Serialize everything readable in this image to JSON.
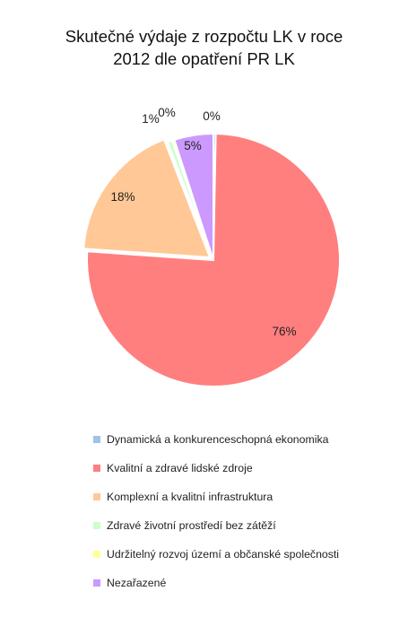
{
  "chart_data": {
    "type": "pie",
    "title_lines": [
      "Skutečné výdaje z rozpočtu LK v roce",
      "2012 dle opatření PR LK"
    ],
    "legend_position": "bottom",
    "series": [
      {
        "slices": [
          {
            "label": "Dynamická a konkurenceschopná ekonomika",
            "value": 0.3,
            "display": "0%",
            "color": "#9dc3e6",
            "exploded": false
          },
          {
            "label": "Kvalitní a zdravé lidské zdroje",
            "value": 75.8,
            "display": "76%",
            "color": "#ff7f7f",
            "exploded": false
          },
          {
            "label": "Komplexní a kvalitní infrastruktura",
            "value": 18.0,
            "display": "18%",
            "color": "#ffc896",
            "exploded": true
          },
          {
            "label": "Zdravé životní prostředí bez zátěží",
            "value": 0.6,
            "display": "1%",
            "color": "#ccffcc",
            "exploded": false
          },
          {
            "label": "Udržitelný rozvoj území a občanské společnosti",
            "value": 0.3,
            "display": "0%",
            "color": "#ffff9e",
            "exploded": false
          },
          {
            "label": "Nezařazené",
            "value": 5.0,
            "display": "5%",
            "color": "#cc99ff",
            "exploded": false
          }
        ]
      }
    ]
  }
}
